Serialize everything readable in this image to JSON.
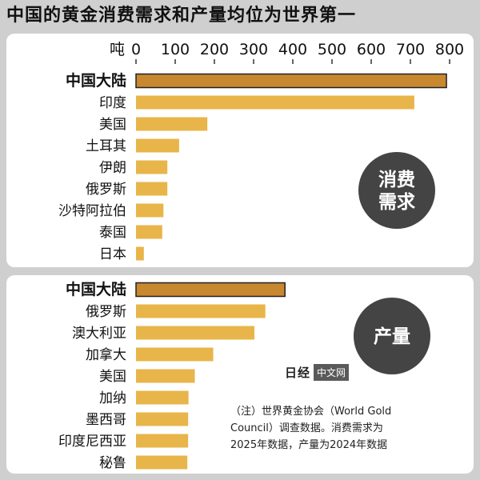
{
  "title": "中国的黄金消费需求和产量均位为世界第一",
  "chart_data": [
    {
      "type": "bar",
      "orientation": "horizontal",
      "unit_label": "吨",
      "xlim": [
        0,
        800
      ],
      "ticks": [
        0,
        100,
        200,
        300,
        400,
        500,
        600,
        700,
        800
      ],
      "badge": [
        "消费",
        "需求"
      ],
      "highlight_category": "中国大陆",
      "categories": [
        "中国大陆",
        "印度",
        "美国",
        "土耳其",
        "伊朗",
        "俄罗斯",
        "沙特阿拉伯",
        "泰国",
        "日本"
      ],
      "values": [
        792,
        710,
        182,
        110,
        80,
        80,
        70,
        67,
        20
      ]
    },
    {
      "type": "bar",
      "orientation": "horizontal",
      "xlim": [
        0,
        800
      ],
      "badge": [
        "产量"
      ],
      "highlight_category": "中国大陆",
      "categories": [
        "中国大陆",
        "俄罗斯",
        "澳大利亚",
        "加拿大",
        "美国",
        "加纳",
        "墨西哥",
        "印度尼西亚",
        "秘鲁"
      ],
      "values": [
        380,
        330,
        302,
        197,
        150,
        134,
        133,
        133,
        131
      ]
    }
  ],
  "colors": {
    "highlight": "#c8882f",
    "bar": "#e8b54a",
    "badge": "#444444"
  },
  "annotation": [
    "（注）世界黄金协会（World Gold",
    "Council）调查数据。消费需求为",
    "2025年数据，产量为2024年数据"
  ],
  "watermark": {
    "jp": "日经",
    "cn": "中文网"
  }
}
